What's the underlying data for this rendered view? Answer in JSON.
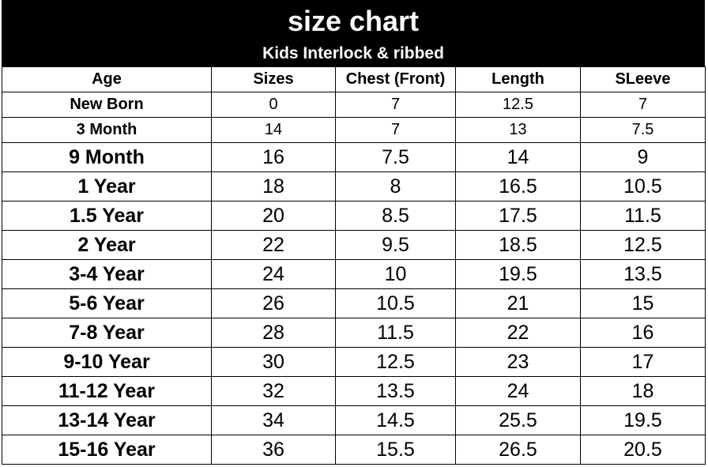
{
  "title": "size chart",
  "subtitle": "Kids  Interlock & ribbed",
  "columns": [
    "Age",
    "Sizes",
    "Chest (Front)",
    "Length",
    "SLeeve"
  ],
  "rows": [
    {
      "age": "New Born",
      "size": "0",
      "chest": "7",
      "length": "12.5",
      "sleeve": "7",
      "style": "small"
    },
    {
      "age": "3 Month",
      "size": "14",
      "chest": "7",
      "length": "13",
      "sleeve": "7.5",
      "style": "small"
    },
    {
      "age": "9 Month",
      "size": "16",
      "chest": "7.5",
      "length": "14",
      "sleeve": "9",
      "style": "big"
    },
    {
      "age": "1 Year",
      "size": "18",
      "chest": "8",
      "length": "16.5",
      "sleeve": "10.5",
      "style": "big"
    },
    {
      "age": "1.5 Year",
      "size": "20",
      "chest": "8.5",
      "length": "17.5",
      "sleeve": "11.5",
      "style": "big"
    },
    {
      "age": "2 Year",
      "size": "22",
      "chest": "9.5",
      "length": "18.5",
      "sleeve": "12.5",
      "style": "big"
    },
    {
      "age": "3-4 Year",
      "size": "24",
      "chest": "10",
      "length": "19.5",
      "sleeve": "13.5",
      "style": "big"
    },
    {
      "age": "5-6 Year",
      "size": "26",
      "chest": "10.5",
      "length": "21",
      "sleeve": "15",
      "style": "big"
    },
    {
      "age": "7-8 Year",
      "size": "28",
      "chest": "11.5",
      "length": "22",
      "sleeve": "16",
      "style": "big"
    },
    {
      "age": "9-10 Year",
      "size": "30",
      "chest": "12.5",
      "length": "23",
      "sleeve": "17",
      "style": "big"
    },
    {
      "age": "11-12 Year",
      "size": "32",
      "chest": "13.5",
      "length": "24",
      "sleeve": "18",
      "style": "big"
    },
    {
      "age": "13-14 Year",
      "size": "34",
      "chest": "14.5",
      "length": "25.5",
      "sleeve": "19.5",
      "style": "big"
    },
    {
      "age": "15-16 Year",
      "size": "36",
      "chest": "15.5",
      "length": "26.5",
      "sleeve": "20.5",
      "style": "big"
    }
  ]
}
